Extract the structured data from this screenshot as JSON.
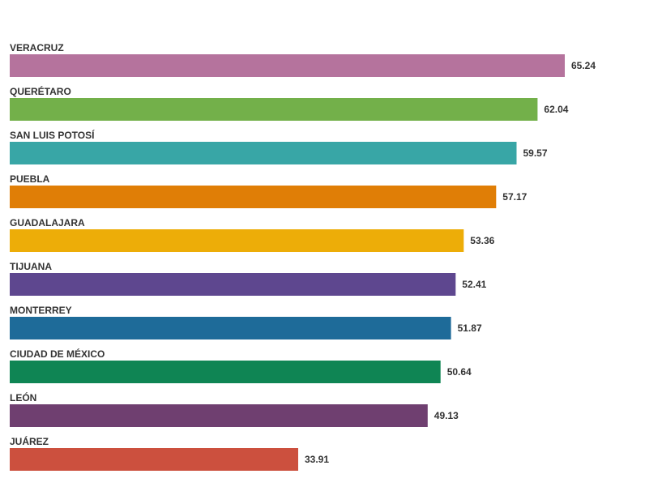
{
  "chart_data": {
    "type": "bar",
    "orientation": "horizontal",
    "title": "",
    "xlabel": "",
    "ylabel": "",
    "xlim": [
      0,
      65.24
    ],
    "grid": false,
    "legend": "none",
    "categories": [
      "VERACRUZ",
      "QUERÉTARO",
      "SAN LUIS POTOSÍ",
      "PUEBLA",
      "GUADALAJARA",
      "TIJUANA",
      "MONTERREY",
      "CIUDAD DE MÉXICO",
      "LEÓN",
      "JUÁREZ"
    ],
    "values": [
      65.24,
      62.04,
      59.57,
      57.17,
      53.36,
      52.41,
      51.87,
      50.64,
      49.13,
      33.91
    ],
    "value_labels": [
      "65.24",
      "62.04",
      "59.57",
      "57.17",
      "53.36",
      "52.41",
      "51.87",
      "50.64",
      "49.13",
      "33.91"
    ],
    "colors": [
      "#b5739d",
      "#73b04a",
      "#38a6a6",
      "#e07e06",
      "#edad08",
      "#5e478f",
      "#1e6b99",
      "#0f8554",
      "#6f3f70",
      "#cc503e"
    ]
  }
}
